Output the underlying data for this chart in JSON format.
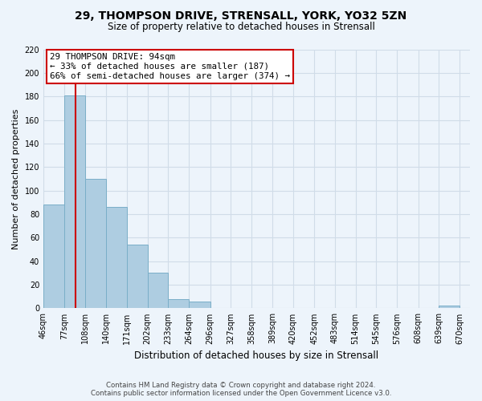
{
  "title": "29, THOMPSON DRIVE, STRENSALL, YORK, YO32 5ZN",
  "subtitle": "Size of property relative to detached houses in Strensall",
  "xlabel": "Distribution of detached houses by size in Strensall",
  "ylabel": "Number of detached properties",
  "bin_labels": [
    "46sqm",
    "77sqm",
    "108sqm",
    "140sqm",
    "171sqm",
    "202sqm",
    "233sqm",
    "264sqm",
    "296sqm",
    "327sqm",
    "358sqm",
    "389sqm",
    "420sqm",
    "452sqm",
    "483sqm",
    "514sqm",
    "545sqm",
    "576sqm",
    "608sqm",
    "639sqm",
    "670sqm"
  ],
  "bin_edges": [
    46,
    77,
    108,
    140,
    171,
    202,
    233,
    264,
    296,
    327,
    358,
    389,
    420,
    452,
    483,
    514,
    545,
    576,
    608,
    639,
    670
  ],
  "bar_heights": [
    88,
    181,
    110,
    86,
    54,
    30,
    8,
    6,
    0,
    0,
    0,
    0,
    0,
    0,
    0,
    0,
    0,
    0,
    0,
    2
  ],
  "bar_color": "#aecde1",
  "bar_edge_color": "#7aaec8",
  "property_sqm": 94,
  "vline_color": "#cc0000",
  "annotation_line1": "29 THOMPSON DRIVE: 94sqm",
  "annotation_line2": "← 33% of detached houses are smaller (187)",
  "annotation_line3": "66% of semi-detached houses are larger (374) →",
  "ylim": [
    0,
    220
  ],
  "yticks": [
    0,
    20,
    40,
    60,
    80,
    100,
    120,
    140,
    160,
    180,
    200,
    220
  ],
  "bg_color": "#edf4fb",
  "grid_color": "#d0dce8",
  "footer_line1": "Contains HM Land Registry data © Crown copyright and database right 2024.",
  "footer_line2": "Contains public sector information licensed under the Open Government Licence v3.0."
}
